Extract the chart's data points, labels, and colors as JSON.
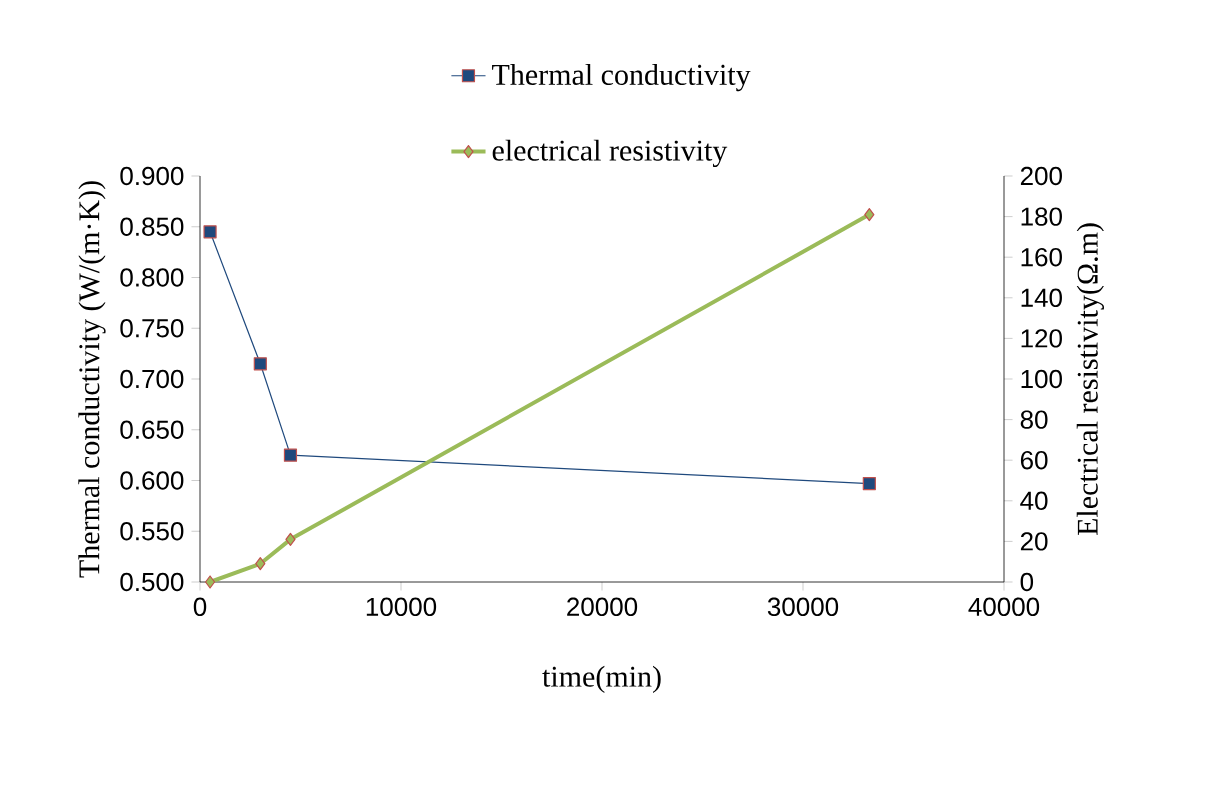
{
  "chart_data": {
    "type": "line",
    "xlabel": "time(min)",
    "ylabel": "Thermal conductivity (W/(m·K))",
    "y2label": "Electrical resistivity(Ω.m)",
    "series": [
      {
        "name": "Thermal conductivity",
        "color": "#1f497d",
        "x": [
          500,
          3000,
          4500,
          33300
        ],
        "values": [
          0.845,
          0.715,
          0.625,
          0.597
        ],
        "marker": "square"
      },
      {
        "name": "electrical resistivity",
        "color": "#9bbb59",
        "x": [
          500,
          3000,
          4500,
          33300
        ],
        "values": [
          0,
          9,
          21,
          181
        ],
        "marker": "diamond",
        "axis": "y2"
      }
    ],
    "xlim": [
      0,
      40000
    ],
    "xticks": [
      0,
      10000,
      20000,
      30000,
      40000
    ],
    "ylim": [
      0.5,
      0.9
    ],
    "yticks": [
      {
        "value": 0.5,
        "label": "0.500"
      },
      {
        "value": 0.55,
        "label": "0.550"
      },
      {
        "value": 0.6,
        "label": "0.600"
      },
      {
        "value": 0.65,
        "label": "0.650"
      },
      {
        "value": 0.7,
        "label": "0.700"
      },
      {
        "value": 0.75,
        "label": "0.750"
      },
      {
        "value": 0.8,
        "label": "0.800"
      },
      {
        "value": 0.85,
        "label": "0.850"
      },
      {
        "value": 0.9,
        "label": "0.900"
      }
    ],
    "y2lim": [
      0,
      200
    ],
    "y2ticks": [
      0,
      20,
      40,
      60,
      80,
      100,
      120,
      140,
      160,
      180,
      200
    ],
    "legend": "top",
    "grid": false
  }
}
